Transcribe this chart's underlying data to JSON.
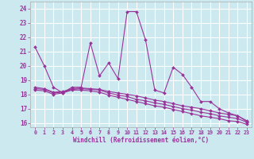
{
  "background_color": "#cce9f0",
  "grid_color": "#ffffff",
  "line_color": "#993399",
  "xlabel": "Windchill (Refroidissement éolien,°C)",
  "xlim": [
    -0.5,
    23.5
  ],
  "ylim": [
    15.7,
    24.5
  ],
  "yticks": [
    16,
    17,
    18,
    19,
    20,
    21,
    22,
    23,
    24
  ],
  "xticks": [
    0,
    1,
    2,
    3,
    4,
    5,
    6,
    7,
    8,
    9,
    10,
    11,
    12,
    13,
    14,
    15,
    16,
    17,
    18,
    19,
    20,
    21,
    22,
    23
  ],
  "series1": [
    21.3,
    20.0,
    18.5,
    18.1,
    18.5,
    18.5,
    21.6,
    19.3,
    20.2,
    19.1,
    23.8,
    23.8,
    21.8,
    18.3,
    18.1,
    19.9,
    19.4,
    18.5,
    17.5,
    17.5,
    17.0,
    16.7,
    16.5,
    16.1
  ],
  "series2": [
    18.5,
    18.4,
    18.15,
    18.2,
    18.4,
    18.45,
    18.4,
    18.35,
    18.2,
    18.1,
    18.0,
    17.9,
    17.75,
    17.6,
    17.5,
    17.35,
    17.2,
    17.1,
    17.0,
    16.85,
    16.7,
    16.6,
    16.5,
    16.15
  ],
  "series3": [
    18.4,
    18.35,
    18.1,
    18.15,
    18.35,
    18.4,
    18.35,
    18.3,
    18.1,
    17.95,
    17.85,
    17.65,
    17.55,
    17.4,
    17.3,
    17.15,
    17.0,
    16.9,
    16.75,
    16.65,
    16.5,
    16.4,
    16.3,
    16.05
  ],
  "series4": [
    18.3,
    18.25,
    18.0,
    18.1,
    18.3,
    18.3,
    18.25,
    18.15,
    17.95,
    17.8,
    17.65,
    17.5,
    17.35,
    17.2,
    17.1,
    16.95,
    16.8,
    16.65,
    16.5,
    16.4,
    16.3,
    16.15,
    16.1,
    15.9
  ]
}
